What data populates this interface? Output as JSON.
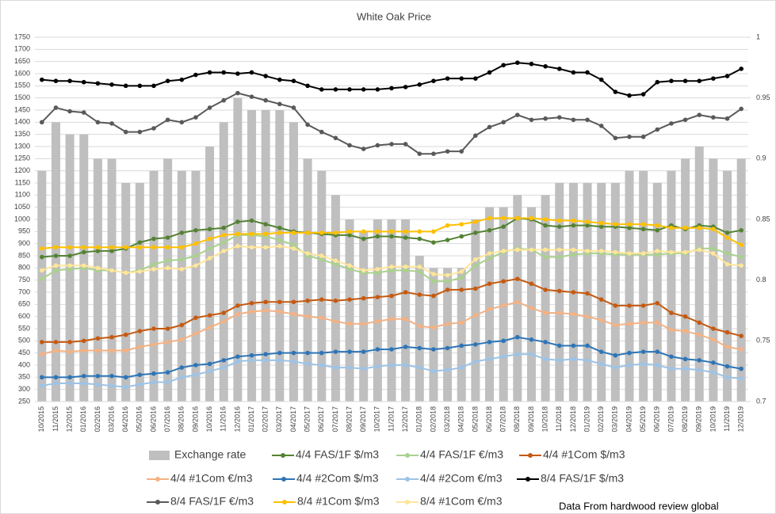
{
  "chart_data": {
    "type": "combo",
    "title": "White Oak Price",
    "note": "Data From hardwood review global",
    "categories": [
      "10/2015",
      "11/2015",
      "12/2015",
      "01/2016",
      "02/2016",
      "03/2016",
      "04/2016",
      "05/2016",
      "06/2016",
      "07/2016",
      "08/2016",
      "09/2016",
      "10/2016",
      "11/2016",
      "12/2016",
      "01/2017",
      "02/2017",
      "03/2017",
      "04/2017",
      "05/2017",
      "06/2017",
      "07/2017",
      "08/2017",
      "09/2017",
      "10/2017",
      "11/2017",
      "12/2017",
      "01/2018",
      "02/2018",
      "03/2018",
      "04/2018",
      "05/2018",
      "06/2018",
      "07/2018",
      "08/2018",
      "09/2018",
      "10/2018",
      "11/2018",
      "12/2018",
      "01/2019",
      "02/2019",
      "03/2019",
      "04/2019",
      "05/2019",
      "06/2019",
      "07/2019",
      "08/2019",
      "09/2019",
      "10/2019",
      "11/2019",
      "12/2019"
    ],
    "ylim": [
      250,
      1750
    ],
    "yticks": [
      250,
      300,
      350,
      400,
      450,
      500,
      550,
      600,
      650,
      700,
      750,
      800,
      850,
      900,
      950,
      1000,
      1050,
      1100,
      1150,
      1200,
      1250,
      1300,
      1350,
      1400,
      1450,
      1500,
      1550,
      1600,
      1650,
      1700,
      1750
    ],
    "y2lim": [
      0.7,
      1
    ],
    "y2ticks": [
      0.7,
      0.75,
      0.8,
      0.85,
      0.9,
      0.95,
      1
    ],
    "grid": true,
    "legend": "bottom",
    "series": [
      {
        "name": "Exchange rate",
        "type": "bar",
        "axis": "y2",
        "color": "#bfbfbf",
        "values": [
          0.89,
          0.93,
          0.92,
          0.92,
          0.9,
          0.9,
          0.88,
          0.88,
          0.89,
          0.9,
          0.89,
          0.89,
          0.91,
          0.93,
          0.95,
          0.94,
          0.94,
          0.94,
          0.93,
          0.9,
          0.89,
          0.87,
          0.85,
          0.84,
          0.85,
          0.85,
          0.85,
          0.82,
          0.81,
          0.81,
          0.81,
          0.85,
          0.86,
          0.86,
          0.87,
          0.86,
          0.87,
          0.88,
          0.88,
          0.88,
          0.88,
          0.88,
          0.89,
          0.89,
          0.88,
          0.89,
          0.9,
          0.91,
          0.9,
          0.89,
          0.9
        ]
      },
      {
        "name": "4/4 FAS/1F $/m3",
        "type": "line",
        "color": "#548235",
        "values": [
          845,
          850,
          850,
          865,
          870,
          870,
          880,
          905,
          920,
          925,
          945,
          955,
          960,
          965,
          990,
          995,
          980,
          965,
          950,
          945,
          940,
          935,
          935,
          920,
          930,
          930,
          925,
          920,
          905,
          915,
          930,
          945,
          955,
          970,
          1005,
          1000,
          975,
          970,
          975,
          975,
          970,
          970,
          965,
          960,
          955,
          975,
          960,
          975,
          970,
          945,
          955
        ]
      },
      {
        "name": "4/4 FAS/1F €/m3",
        "type": "line",
        "color": "#a9d18e",
        "values": [
          755,
          790,
          795,
          800,
          790,
          790,
          780,
          790,
          815,
          830,
          835,
          850,
          880,
          905,
          935,
          935,
          930,
          915,
          895,
          850,
          835,
          815,
          795,
          780,
          780,
          790,
          790,
          785,
          745,
          745,
          760,
          810,
          840,
          865,
          880,
          875,
          845,
          845,
          855,
          860,
          860,
          855,
          855,
          855,
          855,
          860,
          860,
          880,
          880,
          860,
          845
        ]
      },
      {
        "name": "4/4 #1Com $/m3",
        "type": "line",
        "color": "#c55a11",
        "values": [
          495,
          495,
          495,
          500,
          510,
          515,
          525,
          540,
          550,
          550,
          565,
          595,
          605,
          615,
          645,
          655,
          660,
          660,
          660,
          665,
          670,
          665,
          670,
          675,
          680,
          685,
          700,
          690,
          685,
          710,
          710,
          715,
          735,
          745,
          755,
          735,
          710,
          705,
          700,
          695,
          670,
          645,
          645,
          645,
          655,
          615,
          600,
          575,
          550,
          535,
          520
        ]
      },
      {
        "name": "4/4 #1Com €/m3",
        "type": "line",
        "color": "#f4b183",
        "values": [
          445,
          460,
          455,
          460,
          460,
          460,
          460,
          475,
          485,
          495,
          505,
          530,
          555,
          580,
          610,
          620,
          625,
          620,
          610,
          600,
          595,
          580,
          570,
          570,
          580,
          590,
          590,
          560,
          555,
          570,
          575,
          605,
          630,
          645,
          660,
          635,
          615,
          615,
          610,
          600,
          585,
          565,
          570,
          575,
          575,
          545,
          540,
          525,
          505,
          475,
          465
        ]
      },
      {
        "name": "4/4 #2Com $/m3",
        "type": "line",
        "color": "#2e75b6",
        "values": [
          350,
          350,
          350,
          355,
          355,
          355,
          350,
          360,
          365,
          370,
          390,
          400,
          405,
          420,
          435,
          440,
          445,
          450,
          450,
          450,
          450,
          455,
          455,
          455,
          465,
          465,
          475,
          470,
          465,
          470,
          480,
          485,
          495,
          500,
          515,
          505,
          495,
          480,
          480,
          480,
          455,
          440,
          450,
          455,
          455,
          435,
          425,
          420,
          410,
          395,
          385
        ]
      },
      {
        "name": "4/4 #2Com €/m3",
        "type": "line",
        "color": "#9dc3e6",
        "values": [
          315,
          325,
          325,
          325,
          320,
          315,
          310,
          320,
          330,
          330,
          350,
          360,
          375,
          390,
          415,
          420,
          420,
          420,
          415,
          405,
          400,
          390,
          390,
          385,
          395,
          400,
          400,
          390,
          375,
          380,
          390,
          415,
          425,
          435,
          445,
          445,
          425,
          420,
          425,
          420,
          405,
          390,
          400,
          405,
          400,
          385,
          385,
          380,
          370,
          350,
          345
        ]
      },
      {
        "name": "8/4 FAS/1F $/m3",
        "type": "line",
        "color": "#000000",
        "values": [
          1575,
          1570,
          1570,
          1565,
          1560,
          1555,
          1550,
          1550,
          1550,
          1570,
          1575,
          1595,
          1605,
          1605,
          1600,
          1605,
          1590,
          1575,
          1570,
          1550,
          1535,
          1535,
          1535,
          1535,
          1535,
          1540,
          1545,
          1555,
          1570,
          1580,
          1580,
          1580,
          1605,
          1635,
          1645,
          1640,
          1630,
          1620,
          1605,
          1605,
          1575,
          1525,
          1510,
          1515,
          1565,
          1570,
          1570,
          1570,
          1580,
          1590,
          1620
        ]
      },
      {
        "name": "8/4 FAS/1F €/m3",
        "type": "line",
        "color": "#595959",
        "values": [
          1400,
          1460,
          1445,
          1440,
          1400,
          1395,
          1360,
          1360,
          1375,
          1410,
          1400,
          1420,
          1460,
          1490,
          1520,
          1505,
          1490,
          1475,
          1460,
          1390,
          1360,
          1335,
          1305,
          1290,
          1305,
          1310,
          1310,
          1270,
          1270,
          1280,
          1280,
          1345,
          1380,
          1400,
          1430,
          1410,
          1415,
          1420,
          1410,
          1410,
          1385,
          1335,
          1340,
          1340,
          1370,
          1395,
          1410,
          1430,
          1420,
          1415,
          1455
        ]
      },
      {
        "name": "8/4 #1Com $/m3",
        "type": "line",
        "color": "#ffc000",
        "values": [
          880,
          885,
          885,
          885,
          885,
          885,
          885,
          885,
          885,
          885,
          885,
          900,
          920,
          935,
          940,
          940,
          940,
          945,
          945,
          945,
          945,
          945,
          950,
          950,
          950,
          950,
          950,
          950,
          950,
          975,
          980,
          990,
          1005,
          1005,
          1005,
          1005,
          1000,
          995,
          995,
          990,
          985,
          980,
          980,
          980,
          975,
          965,
          965,
          965,
          960,
          925,
          895
        ]
      },
      {
        "name": "8/4 #1Com €/m3",
        "type": "line",
        "color": "#ffe699",
        "values": [
          790,
          810,
          810,
          810,
          800,
          790,
          780,
          785,
          795,
          800,
          795,
          810,
          840,
          870,
          890,
          885,
          885,
          890,
          880,
          860,
          850,
          830,
          810,
          790,
          795,
          805,
          805,
          805,
          775,
          770,
          785,
          835,
          860,
          870,
          875,
          875,
          875,
          875,
          875,
          870,
          870,
          865,
          860,
          860,
          870,
          865,
          865,
          875,
          860,
          815,
          810
        ]
      }
    ]
  }
}
